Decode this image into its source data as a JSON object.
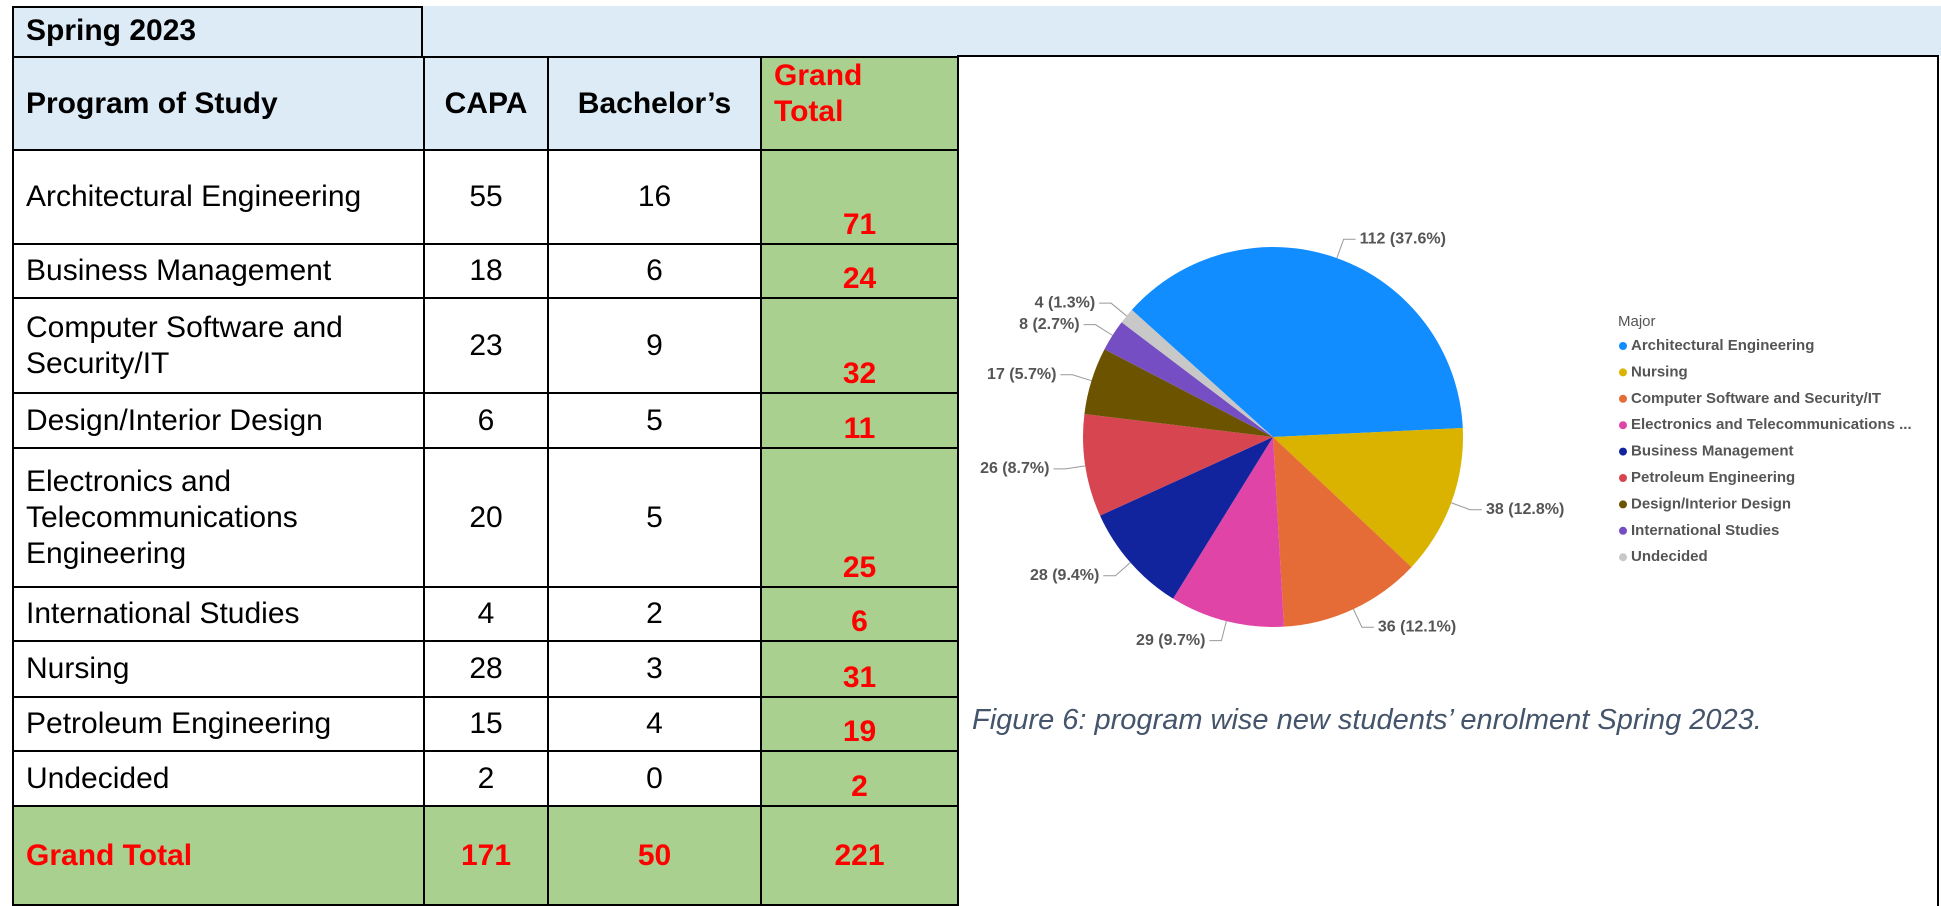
{
  "header": {
    "title": "Spring 2023"
  },
  "table": {
    "columns": [
      "Program of Study",
      "CAPA",
      "Bachelor’s",
      "Grand Total"
    ],
    "rows": [
      [
        "Architectural Engineering",
        55,
        16,
        71
      ],
      [
        "Business Management",
        18,
        6,
        24
      ],
      [
        "Computer Software and Security/IT",
        23,
        9,
        32
      ],
      [
        "Design/Interior Design",
        6,
        5,
        11
      ],
      [
        "Electronics and Telecommunications Engineering",
        20,
        5,
        25
      ],
      [
        "International Studies",
        4,
        2,
        6
      ],
      [
        "Nursing",
        28,
        3,
        31
      ],
      [
        "Petroleum Engineering",
        15,
        4,
        19
      ],
      [
        "Undecided",
        2,
        0,
        2
      ]
    ],
    "total": [
      "Grand Total",
      171,
      50,
      221
    ]
  },
  "chart_data": {
    "type": "pie",
    "legend_title": "Major",
    "legend": "right",
    "categories": [
      "Architectural Engineering",
      "Nursing",
      "Computer Software and Security/IT",
      "Electronics and Telecommunications ...",
      "Business Management",
      "Petroleum Engineering",
      "Design/Interior Design",
      "International Studies",
      "Undecided"
    ],
    "values": [
      112,
      38,
      36,
      29,
      28,
      26,
      17,
      8,
      4
    ],
    "value_labels": [
      "112 (37.6%)",
      "38 (12.8%)",
      "36 (12.1%)",
      "29 (9.7%)",
      "28 (9.4%)",
      "26 (8.7%)",
      "17 (5.7%)",
      "8 (2.7%)",
      "4 (1.3%)"
    ],
    "colors": [
      "#118DFF",
      "#D9B300",
      "#E66C37",
      "#E044A7",
      "#12239E",
      "#D64550",
      "#6B5300",
      "#744EC2",
      "#C8C8C8"
    ]
  },
  "caption": "Figure 6: program wise new students’ enrolment Spring 2023."
}
